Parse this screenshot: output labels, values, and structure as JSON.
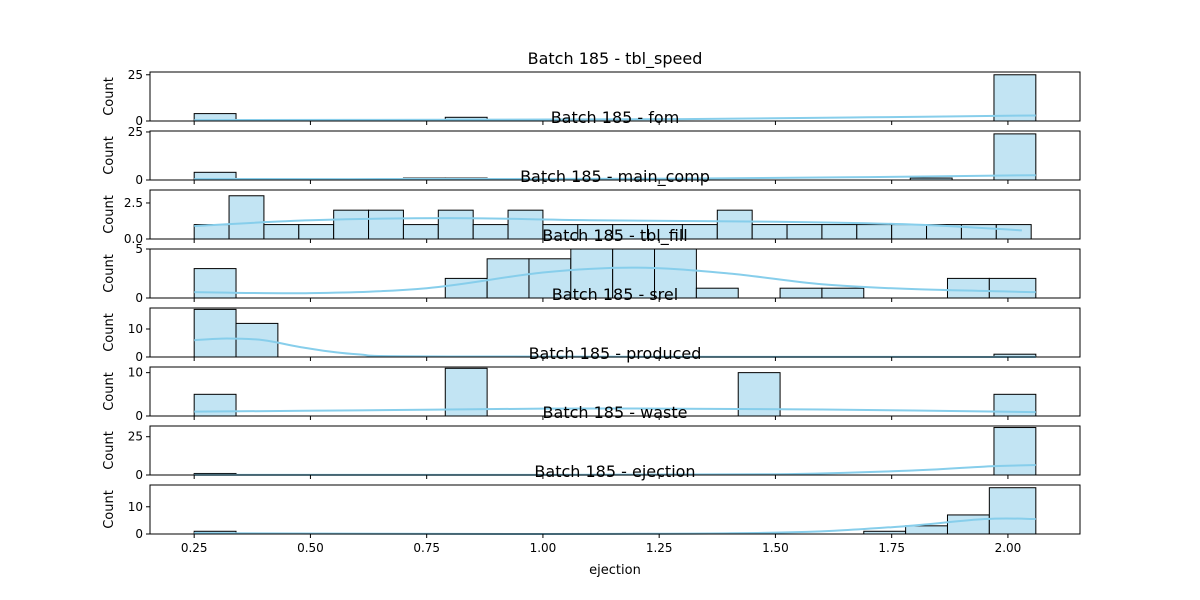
{
  "style": {
    "bar_fill": "#c2e4f3",
    "bar_edge": "#000000",
    "kde_color": "#87ceeb"
  },
  "x_label": "ejection",
  "x_ticks": [
    "0.25",
    "0.50",
    "0.75",
    "1.00",
    "1.25",
    "1.50",
    "1.75",
    "2.00"
  ],
  "chart_data": [
    {
      "type": "histogram",
      "title": "Batch 185 - tbl_speed",
      "ylabel": "Count",
      "ylim": [
        0,
        26.5
      ],
      "yticks": [
        0,
        25
      ],
      "bins": [
        [
          0.25,
          0.34,
          4
        ],
        [
          0.79,
          0.88,
          2
        ],
        [
          1.97,
          2.06,
          25
        ]
      ],
      "kde": [
        [
          0.25,
          0.5
        ],
        [
          0.8,
          0.7
        ],
        [
          1.3,
          1.0
        ],
        [
          1.7,
          2.0
        ],
        [
          2.06,
          3.0
        ]
      ]
    },
    {
      "type": "histogram",
      "title": "Batch 185 - fom",
      "ylabel": "Count",
      "ylim": [
        0,
        25.5
      ],
      "yticks": [
        0,
        25
      ],
      "bins": [
        [
          0.25,
          0.34,
          4
        ],
        [
          0.7,
          0.79,
          1
        ],
        [
          0.79,
          0.88,
          1
        ],
        [
          1.79,
          1.88,
          1
        ],
        [
          1.97,
          2.06,
          24
        ]
      ],
      "kde": [
        [
          0.25,
          0.5
        ],
        [
          0.8,
          0.5
        ],
        [
          1.3,
          0.7
        ],
        [
          1.7,
          1.5
        ],
        [
          2.06,
          2.5
        ]
      ]
    },
    {
      "type": "histogram",
      "title": "Batch 185 - main_comp",
      "ylabel": "Count",
      "ylim": [
        0,
        3.4
      ],
      "yticks": [
        0,
        2.5
      ],
      "ytick_labels": [
        "0.0",
        "2.5"
      ],
      "bins": [
        [
          0.25,
          0.325,
          1
        ],
        [
          0.325,
          0.4,
          3
        ],
        [
          0.4,
          0.475,
          1
        ],
        [
          0.475,
          0.55,
          1
        ],
        [
          0.55,
          0.625,
          2
        ],
        [
          0.625,
          0.7,
          2
        ],
        [
          0.7,
          0.775,
          1
        ],
        [
          0.775,
          0.85,
          2
        ],
        [
          0.85,
          0.925,
          1
        ],
        [
          0.925,
          1.0,
          2
        ],
        [
          1.0,
          1.075,
          1
        ],
        [
          1.075,
          1.15,
          1
        ],
        [
          1.15,
          1.225,
          1
        ],
        [
          1.225,
          1.3,
          1
        ],
        [
          1.3,
          1.375,
          1
        ],
        [
          1.375,
          1.45,
          2
        ],
        [
          1.45,
          1.525,
          1
        ],
        [
          1.525,
          1.6,
          1
        ],
        [
          1.6,
          1.675,
          1
        ],
        [
          1.675,
          1.75,
          1
        ],
        [
          1.75,
          1.825,
          1
        ],
        [
          1.825,
          1.9,
          1
        ],
        [
          1.9,
          1.975,
          1
        ],
        [
          1.975,
          2.05,
          1
        ]
      ],
      "kde": [
        [
          0.25,
          0.9
        ],
        [
          0.5,
          1.3
        ],
        [
          0.8,
          1.45
        ],
        [
          1.1,
          1.3
        ],
        [
          1.5,
          1.2
        ],
        [
          1.8,
          1.0
        ],
        [
          2.03,
          0.6
        ]
      ]
    },
    {
      "type": "histogram",
      "title": "Batch 185 - tbl_fill",
      "ylabel": "Count",
      "ylim": [
        0,
        5.0
      ],
      "yticks": [
        0,
        5
      ],
      "ytick_labels": [
        "0",
        "5"
      ],
      "bins": [
        [
          0.25,
          0.34,
          3
        ],
        [
          0.79,
          0.88,
          2
        ],
        [
          0.88,
          0.97,
          4
        ],
        [
          0.97,
          1.06,
          4
        ],
        [
          1.06,
          1.15,
          5
        ],
        [
          1.15,
          1.24,
          5
        ],
        [
          1.24,
          1.33,
          5
        ],
        [
          1.33,
          1.42,
          1
        ],
        [
          1.51,
          1.6,
          1
        ],
        [
          1.6,
          1.69,
          1
        ],
        [
          1.87,
          1.96,
          2
        ],
        [
          1.96,
          2.06,
          2
        ]
      ],
      "kde": [
        [
          0.25,
          0.6
        ],
        [
          0.5,
          0.5
        ],
        [
          0.75,
          1.0
        ],
        [
          1.0,
          2.6
        ],
        [
          1.2,
          3.1
        ],
        [
          1.4,
          2.5
        ],
        [
          1.6,
          1.4
        ],
        [
          1.8,
          0.9
        ],
        [
          2.06,
          0.6
        ]
      ]
    },
    {
      "type": "histogram",
      "title": "Batch 185 - srel",
      "ylabel": "Count",
      "ylim": [
        0,
        17.5
      ],
      "yticks": [
        0,
        10
      ],
      "bins": [
        [
          0.25,
          0.34,
          17
        ],
        [
          0.34,
          0.43,
          12
        ],
        [
          1.97,
          2.06,
          1
        ]
      ],
      "kde": [
        [
          0.25,
          6.0
        ],
        [
          0.32,
          6.6
        ],
        [
          0.4,
          6.0
        ],
        [
          0.48,
          3.5
        ],
        [
          0.6,
          1.0
        ],
        [
          0.8,
          0.2
        ],
        [
          2.06,
          0.0
        ]
      ]
    },
    {
      "type": "histogram",
      "title": "Batch 185 - produced",
      "ylabel": "Count",
      "ylim": [
        0,
        11.3
      ],
      "yticks": [
        0,
        10
      ],
      "bins": [
        [
          0.25,
          0.34,
          5
        ],
        [
          0.79,
          0.88,
          11
        ],
        [
          1.42,
          1.51,
          10
        ],
        [
          1.97,
          2.06,
          5
        ]
      ],
      "kde": [
        [
          0.25,
          1.0
        ],
        [
          0.6,
          1.3
        ],
        [
          1.0,
          1.7
        ],
        [
          1.25,
          1.7
        ],
        [
          1.6,
          1.5
        ],
        [
          2.06,
          0.9
        ]
      ]
    },
    {
      "type": "histogram",
      "title": "Batch 185 - waste",
      "ylabel": "Count",
      "ylim": [
        0,
        32.0
      ],
      "yticks": [
        0,
        25
      ],
      "bins": [
        [
          0.25,
          0.34,
          1
        ],
        [
          1.97,
          2.06,
          31
        ]
      ],
      "kde": [
        [
          0.25,
          0.1
        ],
        [
          1.0,
          0.1
        ],
        [
          1.5,
          0.5
        ],
        [
          1.8,
          3.0
        ],
        [
          1.95,
          5.5
        ],
        [
          2.06,
          6.5
        ]
      ]
    },
    {
      "type": "histogram",
      "title": "Batch 185 - ejection",
      "ylabel": "Count",
      "ylim": [
        0,
        18.0
      ],
      "yticks": [
        0,
        10
      ],
      "bins": [
        [
          0.25,
          0.34,
          1
        ],
        [
          1.69,
          1.78,
          1
        ],
        [
          1.78,
          1.87,
          3
        ],
        [
          1.87,
          1.96,
          7
        ],
        [
          1.96,
          2.06,
          17
        ]
      ],
      "kde": [
        [
          0.25,
          0.3
        ],
        [
          1.0,
          0.0
        ],
        [
          1.5,
          0.5
        ],
        [
          1.75,
          2.5
        ],
        [
          1.95,
          5.5
        ],
        [
          2.06,
          5.5
        ]
      ]
    }
  ]
}
